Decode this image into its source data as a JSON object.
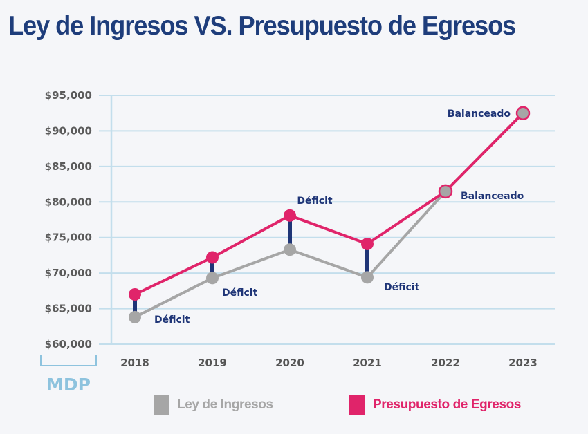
{
  "title": "Ley de Ingresos VS. Presupuesto de Egresos",
  "colors": {
    "title": "#1e3d7b",
    "ingresos": "#a6a6a6",
    "egresos": "#e0246a",
    "gap": "#1f3577",
    "grid": "#c3deec",
    "annotation": "#1f3577",
    "unit": "#8ec3de"
  },
  "chart_data": {
    "type": "line",
    "title": "Ley de Ingresos VS. Presupuesto de Egresos",
    "xlabel": "",
    "ylabel": "MDP",
    "unit_label": "MDP",
    "x": [
      "2018",
      "2019",
      "2020",
      "2021",
      "2022",
      "2023"
    ],
    "ylim": [
      60000,
      95000
    ],
    "yticks": [
      60000,
      65000,
      70000,
      75000,
      80000,
      85000,
      90000,
      95000
    ],
    "ytick_labels": [
      "$60,000",
      "$65,000",
      "$70,000",
      "$75,000",
      "$80,000",
      "$85,000",
      "$90,000",
      "$95,000"
    ],
    "grid": true,
    "legend_position": "bottom",
    "series": [
      {
        "name": "Ley de Ingresos",
        "values": [
          63800,
          69300,
          73300,
          69400,
          81500,
          92500
        ]
      },
      {
        "name": "Presupuesto de Egresos",
        "values": [
          67000,
          72200,
          78100,
          74100,
          81500,
          92500
        ]
      }
    ],
    "annotations": [
      {
        "year": "2018",
        "text": "Déficit"
      },
      {
        "year": "2019",
        "text": "Déficit"
      },
      {
        "year": "2020",
        "text": "Déficit"
      },
      {
        "year": "2021",
        "text": "Déficit"
      },
      {
        "year": "2022",
        "text": "Balanceado"
      },
      {
        "year": "2023",
        "text": "Balanceado"
      }
    ]
  },
  "legend": {
    "items": [
      {
        "label": "Ley de Ingresos"
      },
      {
        "label": "Presupuesto de Egresos"
      }
    ]
  }
}
